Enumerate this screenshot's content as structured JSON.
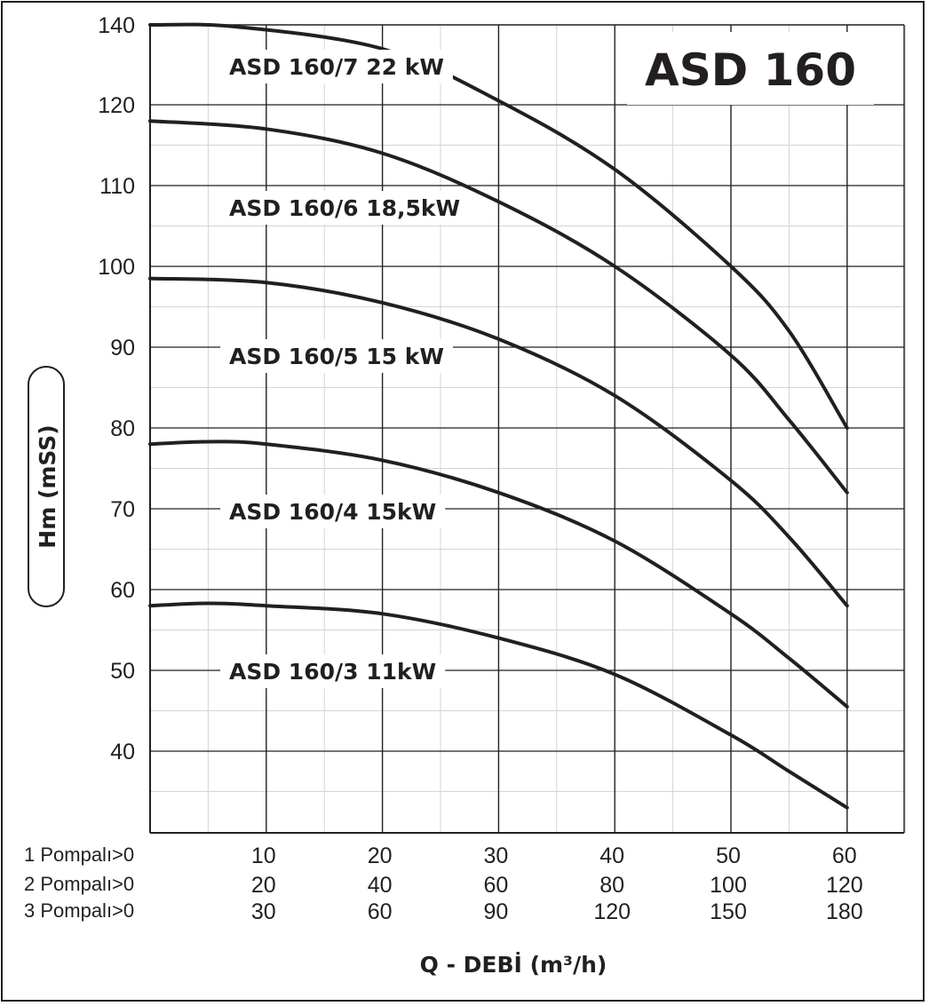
{
  "chart_data": {
    "type": "line",
    "title": "ASD 160",
    "ylabel": "Hm (mSS)",
    "xlabel": "Q - DEBİ (m³/h)",
    "ylim": [
      30,
      140
    ],
    "xlim": [
      0,
      65
    ],
    "y_ticks": [
      140,
      120,
      110,
      100,
      90,
      80,
      70,
      60,
      50,
      40
    ],
    "x_tick_rows": [
      {
        "label": "1 Pompalı>0",
        "values": [
          "10",
          "20",
          "30",
          "40",
          "50",
          "60"
        ]
      },
      {
        "label": "2 Pompalı>0",
        "values": [
          "20",
          "40",
          "60",
          "80",
          "100",
          "120"
        ]
      },
      {
        "label": "3 Pompalı>0",
        "values": [
          "30",
          "60",
          "90",
          "120",
          "150",
          "180"
        ]
      }
    ],
    "grid": true,
    "series": [
      {
        "name": "ASD 160/7 22 kW",
        "x": [
          0,
          7.5,
          20,
          30,
          40,
          50,
          55,
          60
        ],
        "y": [
          140,
          139.5,
          134,
          121,
          112,
          100,
          92,
          80
        ]
      },
      {
        "name": "ASD 160/6 18,5kW",
        "x": [
          0,
          10,
          20,
          30,
          40,
          50,
          55,
          60
        ],
        "y": [
          118,
          117,
          114,
          108,
          100,
          89,
          81,
          72
        ]
      },
      {
        "name": "ASD 160/5 15 kW",
        "x": [
          0,
          10,
          20,
          30,
          40,
          50,
          55,
          60
        ],
        "y": [
          98.5,
          98,
          95.5,
          91,
          84,
          73.5,
          66.5,
          58
        ]
      },
      {
        "name": "ASD 160/4 15kW",
        "x": [
          0,
          5,
          10,
          20,
          30,
          40,
          50,
          55,
          60
        ],
        "y": [
          78,
          78.3,
          78,
          76,
          72,
          66,
          57,
          51.5,
          45.5
        ]
      },
      {
        "name": "ASD 160/3 11kW",
        "x": [
          0,
          5,
          10,
          20,
          30,
          40,
          50,
          55,
          60
        ],
        "y": [
          58,
          58.3,
          58,
          57,
          54,
          49.5,
          42,
          37.5,
          33
        ]
      }
    ],
    "colors": {
      "curve": "#231f20",
      "grid": "#231f20"
    }
  }
}
